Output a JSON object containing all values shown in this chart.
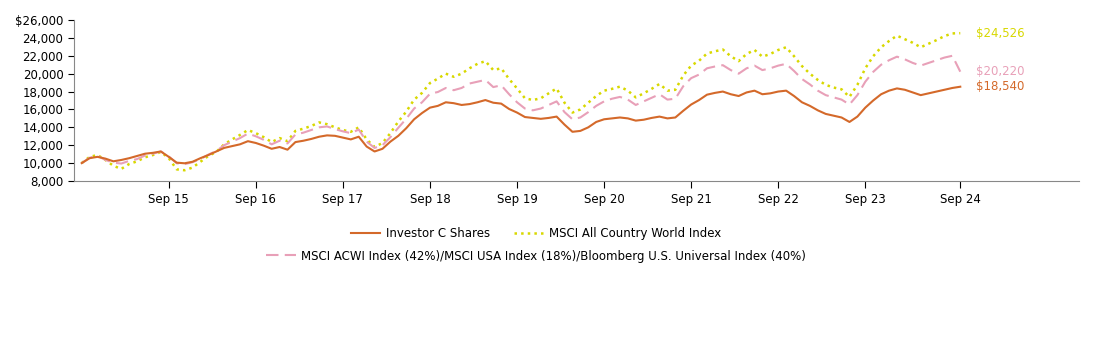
{
  "x_labels": [
    "Sep 15",
    "Sep 16",
    "Sep 17",
    "Sep 18",
    "Sep 19",
    "Sep 20",
    "Sep 21",
    "Sep 22",
    "Sep 23",
    "Sep 24"
  ],
  "ylim": [
    8000,
    26000
  ],
  "yticks": [
    8000,
    10000,
    12000,
    14000,
    16000,
    18000,
    20000,
    22000,
    24000,
    26000
  ],
  "end_labels": {
    "investor_c": "$18,540",
    "msci_acwi": "$24,526",
    "blend": "$20,220"
  },
  "investor_c_color": "#D4692A",
  "msci_acwi_color": "#D8D800",
  "blend_color": "#E8A0B8",
  "legend_labels": [
    "Investor C Shares",
    "MSCI All Country World Index",
    "MSCI ACWI Index (42%)/MSCI USA Index (18%)/Bloomberg U.S. Universal Index (40%)"
  ],
  "investor_c": [
    10000,
    10550,
    10700,
    10500,
    10200,
    10350,
    10550,
    10800,
    11050,
    11150,
    11300,
    10700,
    10050,
    9980,
    10150,
    10550,
    10900,
    11300,
    11700,
    11900,
    12100,
    12450,
    12250,
    11950,
    11600,
    11800,
    11500,
    12350,
    12500,
    12700,
    12950,
    13100,
    13050,
    12850,
    12650,
    12950,
    11850,
    11300,
    11600,
    12400,
    13050,
    13900,
    14900,
    15600,
    16200,
    16400,
    16800,
    16700,
    16500,
    16600,
    16800,
    17050,
    16750,
    16650,
    16050,
    15650,
    15150,
    15050,
    14950,
    15050,
    15200,
    14300,
    13500,
    13600,
    14000,
    14600,
    14900,
    15000,
    15100,
    15000,
    14750,
    14850,
    15050,
    15200,
    15000,
    15100,
    15850,
    16550,
    17050,
    17650,
    17850,
    18000,
    17700,
    17500,
    17900,
    18100,
    17700,
    17800,
    18000,
    18100,
    17500,
    16800,
    16400,
    15900,
    15500,
    15300,
    15100,
    14600,
    15200,
    16200,
    17000,
    17700,
    18100,
    18350,
    18200,
    17900,
    17600,
    17800,
    18000,
    18200,
    18400,
    18540
  ],
  "msci_acwi": [
    10000,
    10700,
    10900,
    10350,
    9700,
    9350,
    9900,
    10200,
    10650,
    10900,
    11250,
    10550,
    9300,
    9200,
    9500,
    10150,
    10800,
    11250,
    12100,
    12650,
    13150,
    13700,
    13350,
    12900,
    12350,
    12800,
    12450,
    13600,
    13850,
    14150,
    14550,
    14350,
    14000,
    13700,
    13500,
    14000,
    12650,
    11800,
    12250,
    13350,
    14650,
    15750,
    17100,
    17850,
    18950,
    19450,
    20000,
    19650,
    20000,
    20600,
    21100,
    21400,
    20400,
    20600,
    19400,
    18350,
    17250,
    17050,
    17250,
    17800,
    18350,
    16750,
    15650,
    16000,
    16750,
    17500,
    18100,
    18300,
    18550,
    18100,
    17350,
    17800,
    18300,
    18850,
    18100,
    18200,
    19800,
    20900,
    21450,
    22250,
    22500,
    22700,
    21950,
    21400,
    22200,
    22650,
    21900,
    22200,
    22650,
    22950,
    21950,
    20850,
    20000,
    19300,
    18750,
    18450,
    18250,
    17400,
    18750,
    20600,
    21950,
    22950,
    23650,
    24250,
    23850,
    23450,
    22950,
    23350,
    23750,
    24200,
    24500,
    24526
  ],
  "blend": [
    10000,
    10600,
    10800,
    10350,
    10050,
    9950,
    10250,
    10450,
    10850,
    11050,
    11300,
    10750,
    9980,
    9880,
    10100,
    10450,
    10950,
    11350,
    12000,
    12400,
    12800,
    13300,
    13000,
    12600,
    12100,
    12500,
    12200,
    13200,
    13400,
    13700,
    14000,
    14100,
    13800,
    13550,
    13350,
    13750,
    12400,
    11700,
    12000,
    12900,
    13950,
    14950,
    16100,
    16800,
    17750,
    17950,
    18400,
    18150,
    18400,
    18900,
    19100,
    19300,
    18500,
    18700,
    17700,
    16800,
    16100,
    15900,
    16100,
    16500,
    16900,
    15700,
    14900,
    15100,
    15700,
    16400,
    16900,
    17200,
    17400,
    17100,
    16500,
    16900,
    17300,
    17700,
    17100,
    17200,
    18600,
    19500,
    19900,
    20600,
    20800,
    20950,
    20400,
    20000,
    20600,
    20900,
    20400,
    20600,
    20900,
    21100,
    20300,
    19400,
    18800,
    18100,
    17600,
    17350,
    17100,
    16550,
    17600,
    19100,
    20200,
    21000,
    21500,
    21900,
    21600,
    21200,
    20900,
    21200,
    21500,
    21800,
    22000,
    20220
  ]
}
